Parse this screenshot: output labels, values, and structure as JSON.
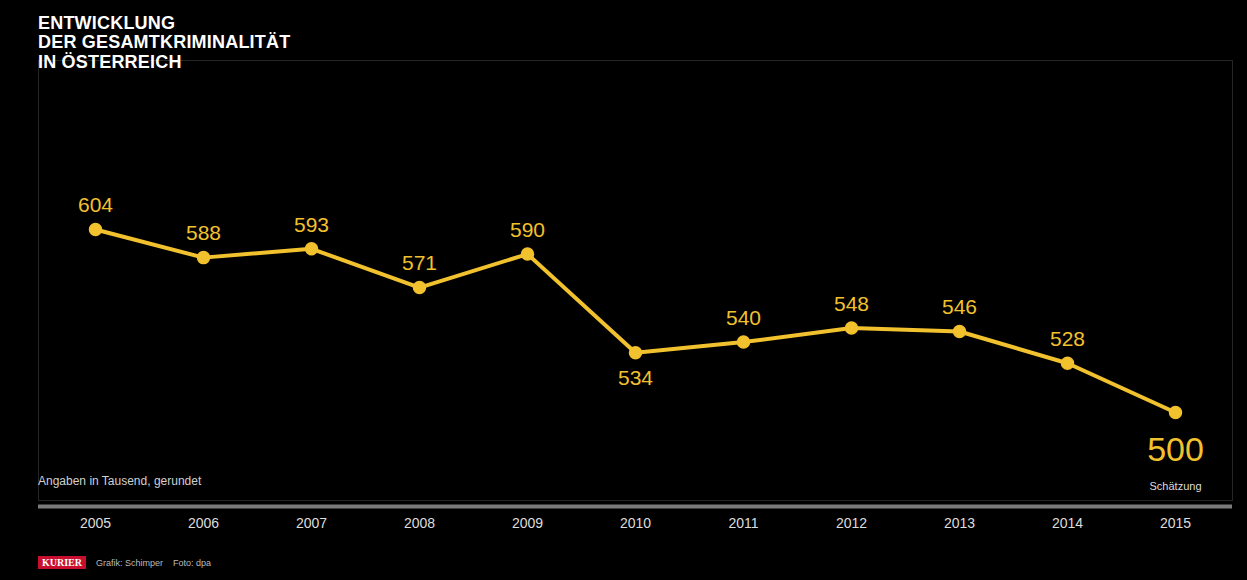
{
  "chart_data": {
    "type": "line",
    "title": "ENTWICKLUNG\nDER GESAMTKRIMINALITÄT\nIN ÖSTERREICH",
    "subtitle": "Angaben in Tausend, gerundet",
    "categories": [
      "2005",
      "2006",
      "2007",
      "2008",
      "2009",
      "2010",
      "2011",
      "2012",
      "2013",
      "2014",
      "2015"
    ],
    "values": [
      604,
      588,
      593,
      571,
      590,
      534,
      540,
      548,
      546,
      528,
      500
    ],
    "color": "#f2c12e",
    "marker": "circle",
    "ylim": [
      450,
      700
    ],
    "grid": false,
    "data_labels": true,
    "tick_labels": "x",
    "annotations": [
      {
        "text": "Schätzung",
        "x": "2015"
      }
    ],
    "credits": [
      "KURIER",
      "Grafik: Schimper",
      "Foto: dpa"
    ]
  }
}
